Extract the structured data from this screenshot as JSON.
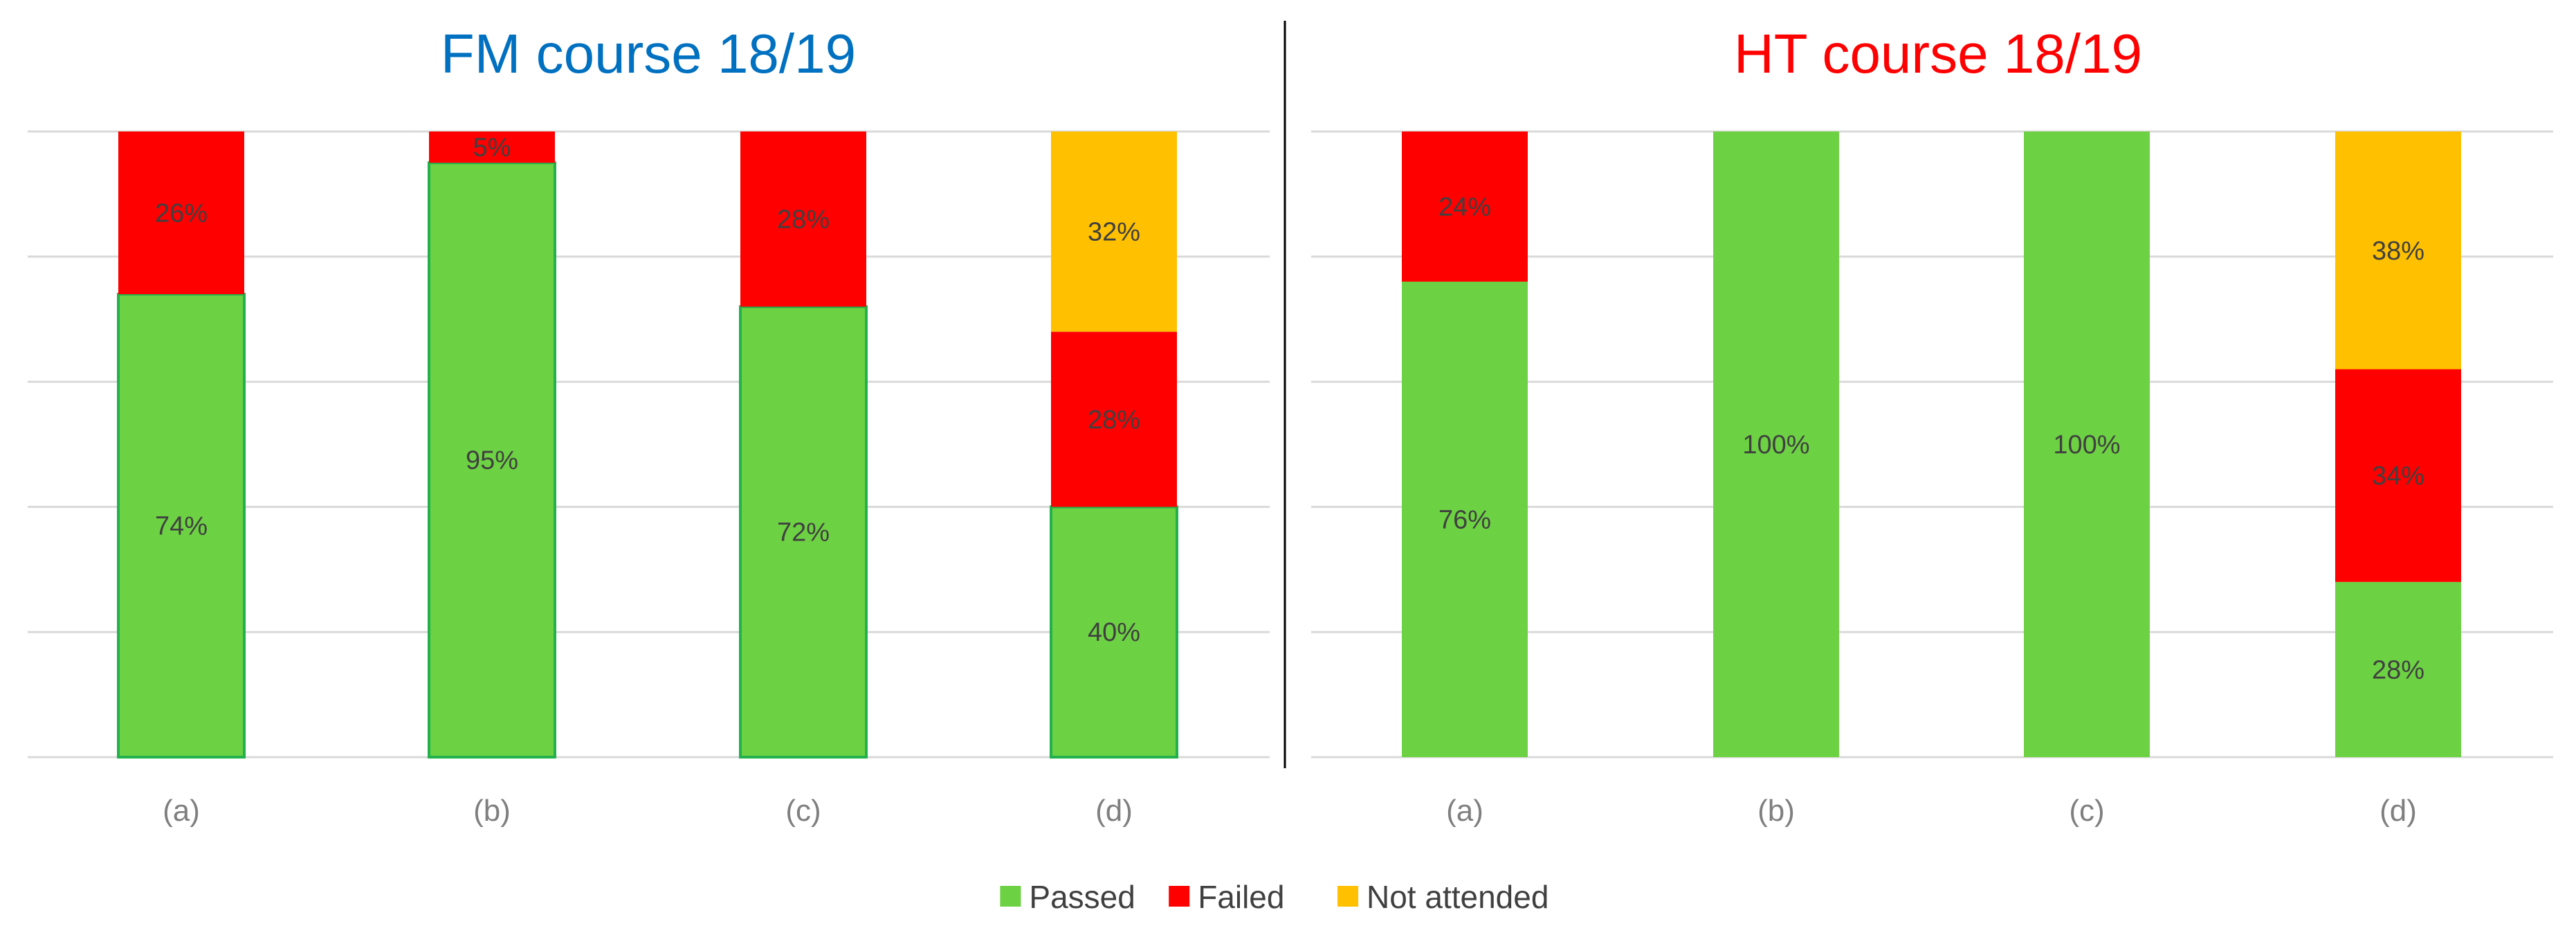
{
  "colors": {
    "passed": "#6dd243",
    "passed_border": "#22b14c",
    "failed": "#ff0000",
    "not_attended": "#ffc000",
    "fm_title": "#0070c0",
    "ht_title": "#ff0000",
    "grid": "#d9d9d9",
    "divider": "#000000"
  },
  "chart_data": [
    {
      "type": "bar",
      "stacked": true,
      "title": "FM course 18/19",
      "categories": [
        "(a)",
        "(b)",
        "(c)",
        "(d)"
      ],
      "ylim": [
        0,
        100
      ],
      "grid": true,
      "series": [
        {
          "name": "Passed",
          "key": "passed",
          "values": [
            74,
            95,
            72,
            40
          ],
          "labels": [
            "74%",
            "95%",
            "72%",
            "40%"
          ]
        },
        {
          "name": "Failed",
          "key": "failed",
          "values": [
            26,
            5,
            28,
            28
          ],
          "labels": [
            "26%",
            "5%",
            "28%",
            "28%"
          ]
        },
        {
          "name": "Not attended",
          "key": "not_attended",
          "values": [
            0,
            0,
            0,
            32
          ],
          "labels": [
            "",
            "",
            "",
            "32%"
          ]
        }
      ]
    },
    {
      "type": "bar",
      "stacked": true,
      "title": "HT course 18/19",
      "categories": [
        "(a)",
        "(b)",
        "(c)",
        "(d)"
      ],
      "ylim": [
        0,
        100
      ],
      "grid": true,
      "series": [
        {
          "name": "Passed",
          "key": "passed",
          "values": [
            76,
            100,
            100,
            28
          ],
          "labels": [
            "76%",
            "100%",
            "100%",
            "28%"
          ]
        },
        {
          "name": "Failed",
          "key": "failed",
          "values": [
            24,
            0,
            0,
            34
          ],
          "labels": [
            "24%",
            "",
            "",
            "34%"
          ]
        },
        {
          "name": "Not attended",
          "key": "not_attended",
          "values": [
            0,
            0,
            0,
            38
          ],
          "labels": [
            "",
            "",
            "",
            "38%"
          ]
        }
      ]
    }
  ],
  "legend": {
    "position": "bottom-center",
    "items": [
      {
        "key": "passed",
        "label": "Passed"
      },
      {
        "key": "failed",
        "label": "Failed"
      },
      {
        "key": "not_attended",
        "label": "Not attended"
      }
    ]
  }
}
